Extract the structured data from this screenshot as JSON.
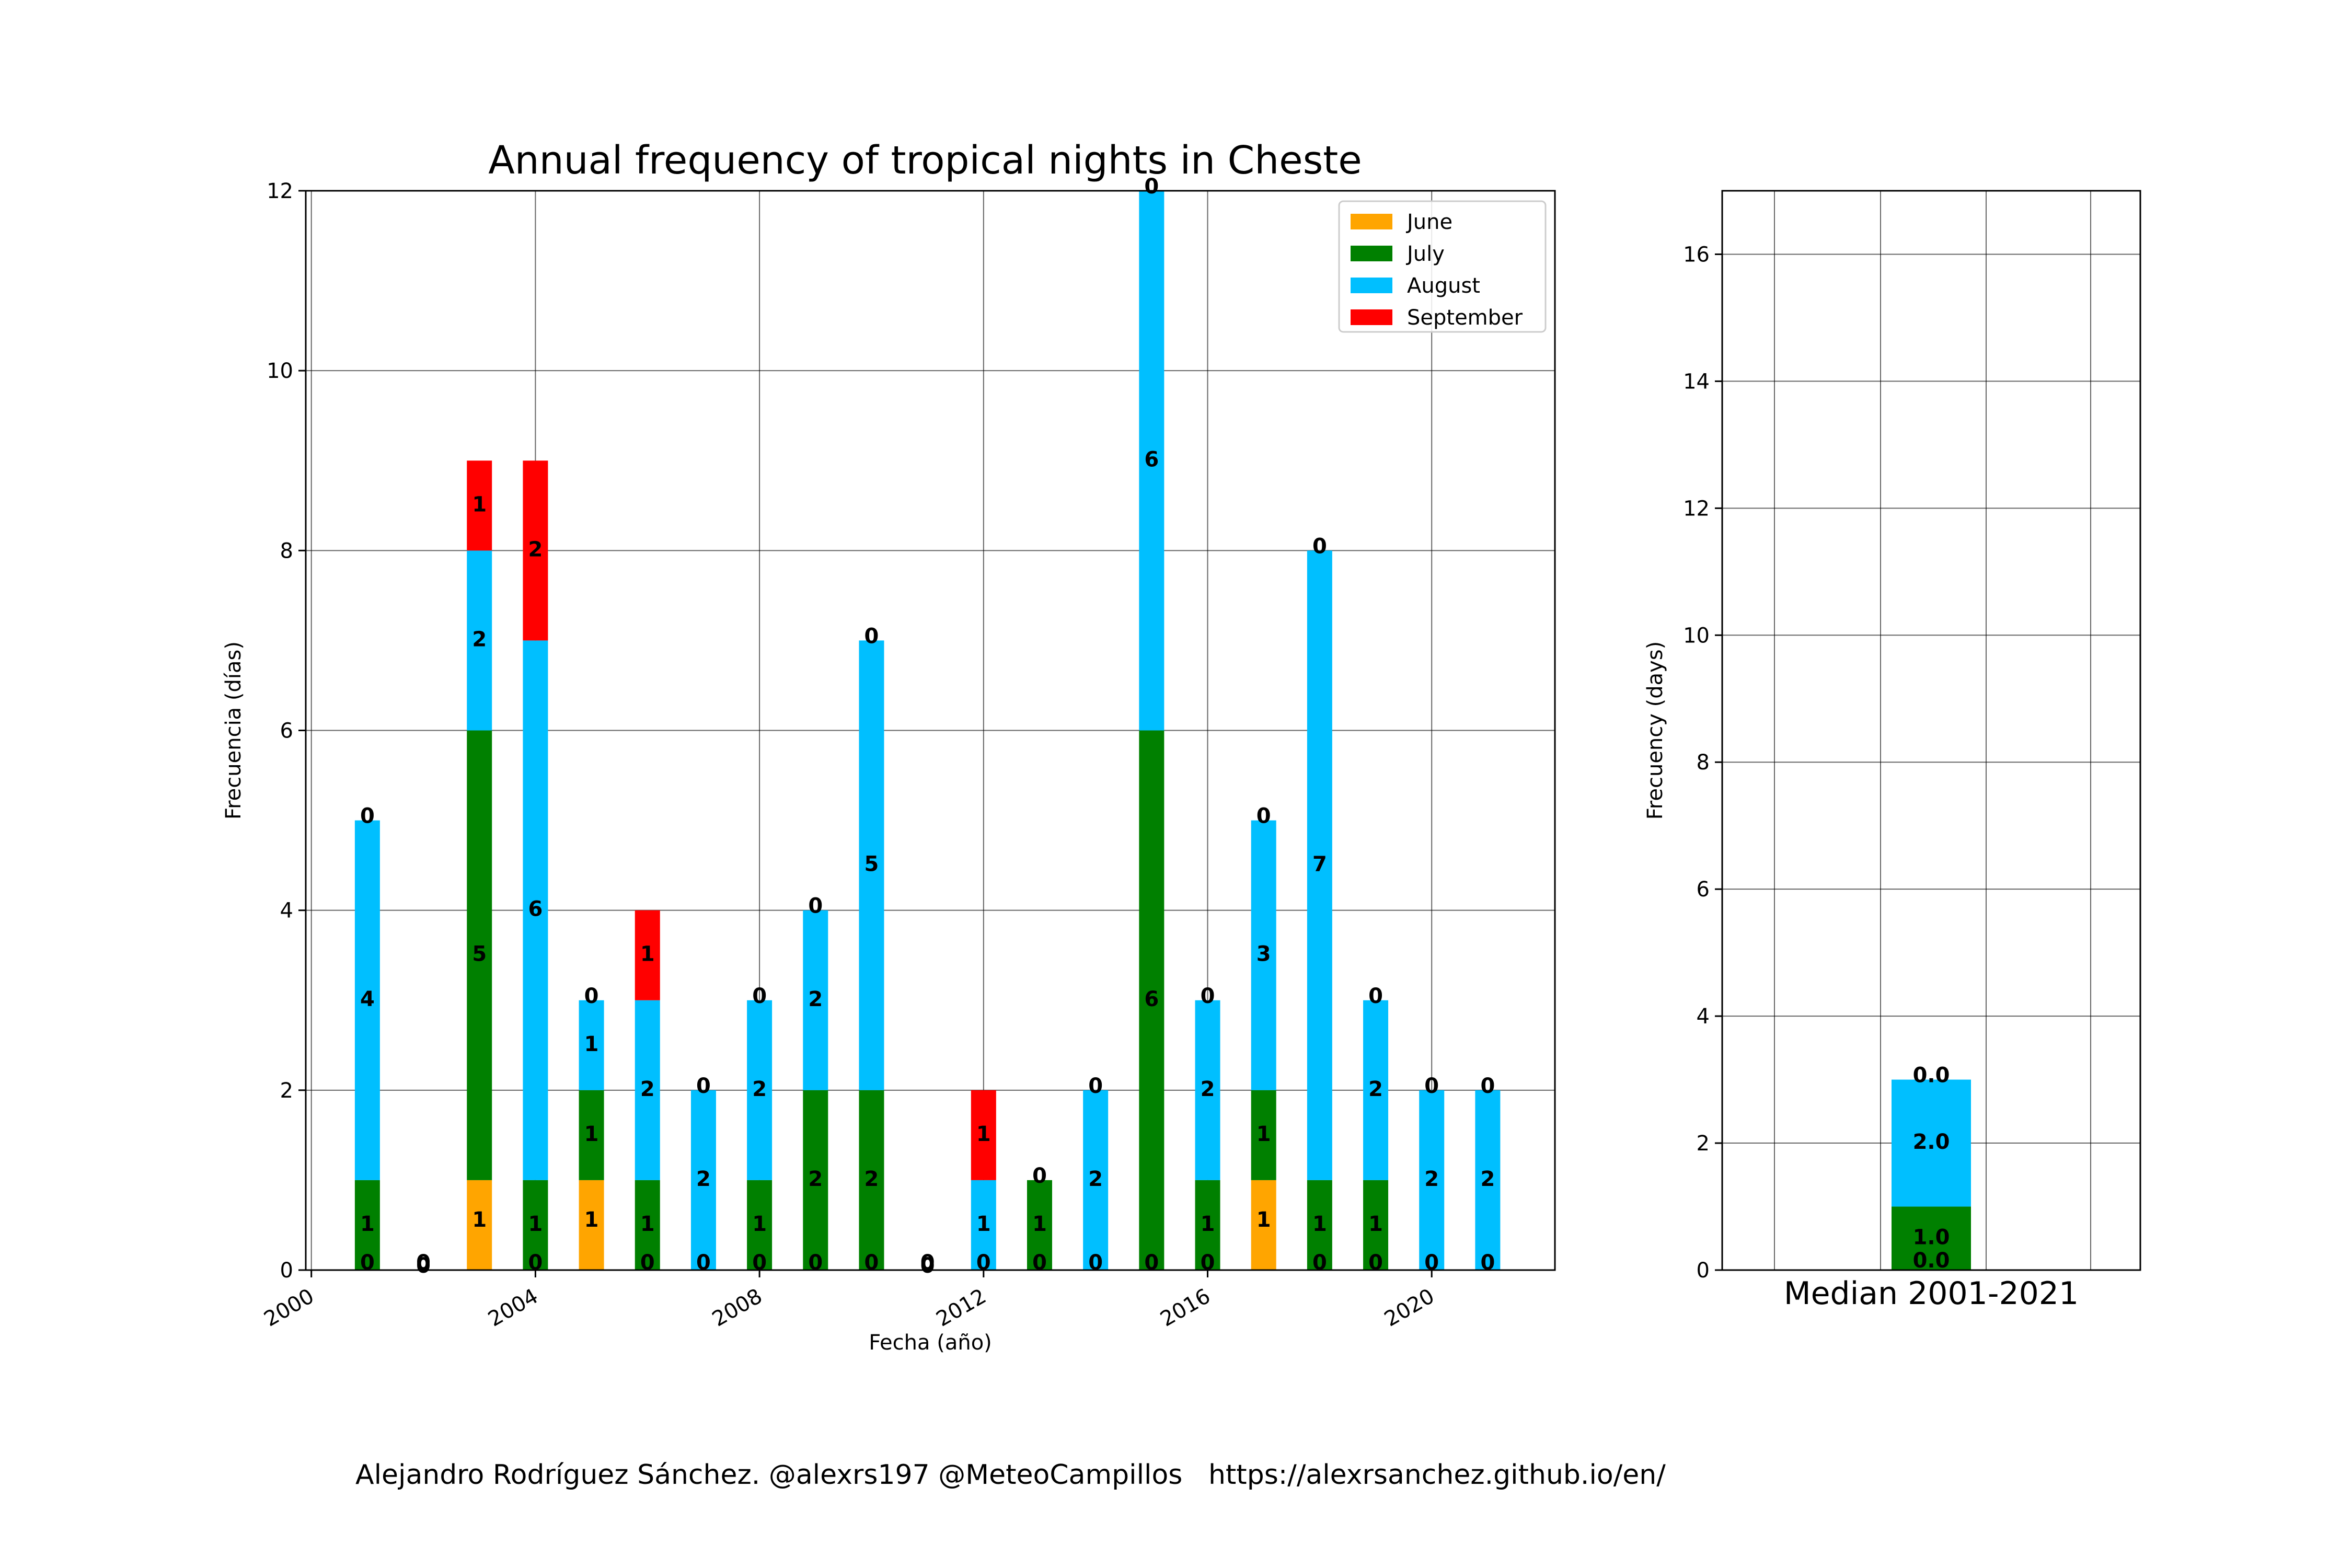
{
  "title": "Annual frequency of tropical nights in Cheste",
  "footer": "Alejandro Rodríguez Sánchez. @alexrs197 @MeteoCampillos   https://alexrsanchez.github.io/en/",
  "colors": {
    "June": "#ffa500",
    "July": "#008000",
    "August": "#00bfff",
    "September": "#ff0000"
  },
  "chart_data": [
    {
      "type": "bar",
      "stacked": true,
      "xlabel": "Fecha (año)",
      "ylabel": "Frecuencia (días)",
      "ylim": [
        0,
        12
      ],
      "xlim": [
        1999.9,
        2022.2
      ],
      "xticks": [
        2000,
        2004,
        2008,
        2012,
        2016,
        2020
      ],
      "yticks": [
        0,
        2,
        4,
        6,
        8,
        10,
        12
      ],
      "grid": true,
      "legend_position": "top-right",
      "x": [
        2001,
        2002,
        2003,
        2004,
        2005,
        2006,
        2007,
        2008,
        2009,
        2010,
        2011,
        2012,
        2013,
        2014,
        2015,
        2016,
        2017,
        2018,
        2019,
        2020,
        2021
      ],
      "series": [
        {
          "name": "June",
          "values": [
            0,
            0,
            1,
            0,
            1,
            0,
            0,
            0,
            0,
            0,
            0,
            0,
            0,
            0,
            0,
            0,
            1,
            0,
            0,
            0,
            0
          ]
        },
        {
          "name": "July",
          "values": [
            1,
            0,
            5,
            1,
            1,
            1,
            0,
            1,
            2,
            2,
            0,
            0,
            1,
            0,
            6,
            1,
            1,
            1,
            1,
            0,
            0
          ]
        },
        {
          "name": "August",
          "values": [
            4,
            0,
            2,
            6,
            1,
            2,
            2,
            2,
            2,
            5,
            0,
            1,
            0,
            2,
            6,
            2,
            3,
            7,
            2,
            2,
            2
          ]
        },
        {
          "name": "September",
          "values": [
            0,
            0,
            1,
            2,
            0,
            1,
            0,
            0,
            0,
            0,
            0,
            1,
            0,
            0,
            0,
            0,
            0,
            0,
            0,
            0,
            0
          ]
        }
      ]
    },
    {
      "type": "bar",
      "stacked": true,
      "xlabel": "",
      "ylabel": "Frecuency (days)",
      "ylim": [
        0,
        17
      ],
      "yticks": [
        0,
        2,
        4,
        6,
        8,
        10,
        12,
        14,
        16
      ],
      "grid": true,
      "categories": [
        "Median 2001-2021"
      ],
      "series": [
        {
          "name": "June",
          "values": [
            0.0
          ]
        },
        {
          "name": "July",
          "values": [
            1.0
          ]
        },
        {
          "name": "August",
          "values": [
            2.0
          ]
        },
        {
          "name": "September",
          "values": [
            0.0
          ]
        }
      ]
    }
  ]
}
